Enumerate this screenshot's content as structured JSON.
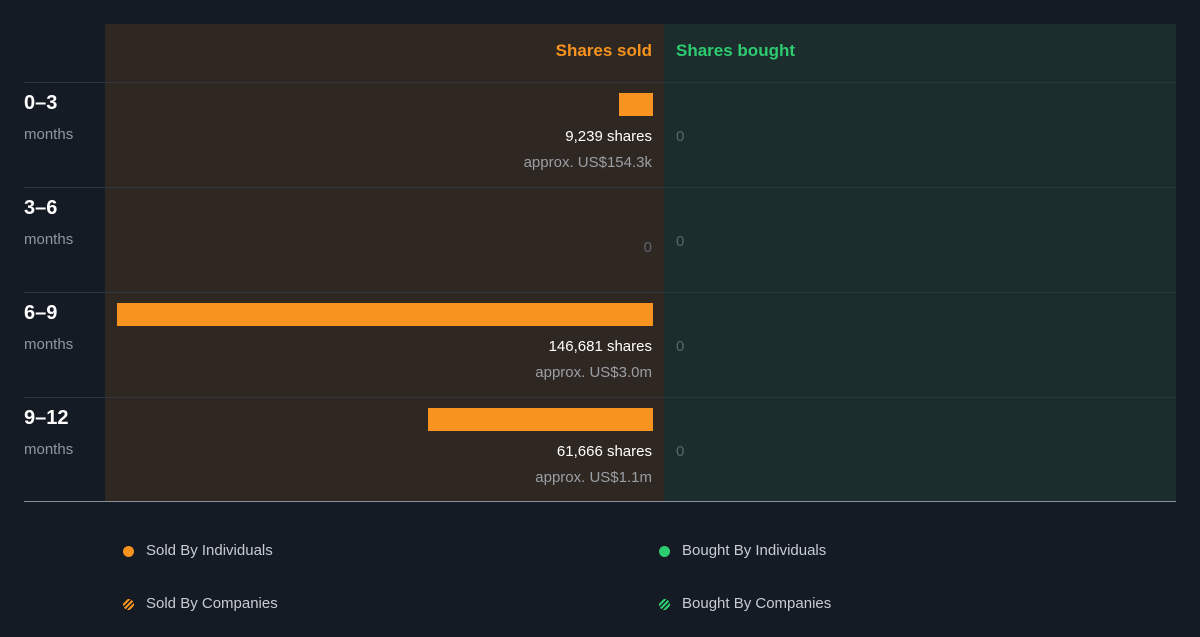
{
  "chart_data": {
    "type": "bar",
    "title": "",
    "orientation": "horizontal-diverging",
    "headers": {
      "sold": "Shares sold",
      "bought": "Shares bought"
    },
    "categories": [
      {
        "period": "0–3",
        "unit": "months"
      },
      {
        "period": "3–6",
        "unit": "months"
      },
      {
        "period": "6–9",
        "unit": "months"
      },
      {
        "period": "9–12",
        "unit": "months"
      }
    ],
    "series": [
      {
        "name": "Shares sold",
        "values": [
          9239,
          0,
          146681,
          61666
        ],
        "labels": [
          "9,239 shares",
          "0",
          "146,681 shares",
          "61,666 shares"
        ],
        "approx": [
          "approx. US$154.3k",
          "",
          "approx. US$3.0m",
          "approx. US$1.1m"
        ]
      },
      {
        "name": "Shares bought",
        "values": [
          0,
          0,
          0,
          0
        ],
        "labels": [
          "0",
          "0",
          "0",
          "0"
        ]
      }
    ],
    "legend": [
      {
        "label": "Sold By Individuals",
        "color": "#f7931e",
        "marker": "dot"
      },
      {
        "label": "Bought By Individuals",
        "color": "#2ecc71",
        "marker": "dot"
      },
      {
        "label": "Sold By Companies",
        "color": "#f7931e",
        "marker": "hatched-dot"
      },
      {
        "label": "Bought By Companies",
        "color": "#2ecc71",
        "marker": "hatched-dot"
      }
    ],
    "legend_position": "bottom",
    "colors": {
      "sold": "#f7931e",
      "bought": "#2ecc71",
      "sold_bg": "#2f2721",
      "bought_bg": "#1b2d2c",
      "page_bg": "#151b24"
    }
  }
}
